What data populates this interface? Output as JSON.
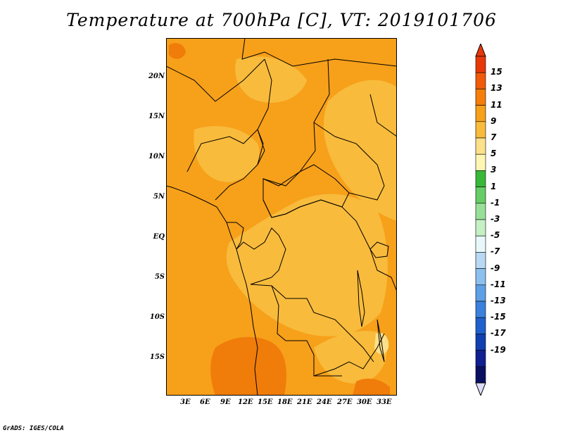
{
  "title": "Temperature at 700hPa [C], VT: 2019101706",
  "credit": "GrADS: IGES/COLA",
  "lat_ticks": [
    "20N",
    "15N",
    "10N",
    "5N",
    "EQ",
    "5S",
    "10S",
    "15S"
  ],
  "lon_ticks": [
    "3E",
    "6E",
    "9E",
    "12E",
    "15E",
    "18E",
    "21E",
    "24E",
    "27E",
    "30E",
    "33E"
  ],
  "colorbar": {
    "labels": [
      "15",
      "13",
      "11",
      "9",
      "7",
      "5",
      "3",
      "1",
      "-1",
      "-3",
      "-5",
      "-7",
      "-9",
      "-11",
      "-13",
      "-15",
      "-17",
      "-19"
    ],
    "colors": [
      "#e8380a",
      "#f05a0a",
      "#f57e0a",
      "#f7a01a",
      "#f8bb3c",
      "#fde08a",
      "#fff6b4",
      "#38b838",
      "#66cc66",
      "#98e098",
      "#c4f0c4",
      "#e8f8f8",
      "#b8d8f4",
      "#8cc0ee",
      "#5ea0e6",
      "#3a80dc",
      "#2060cc",
      "#1040b0",
      "#102090",
      "#0a1060"
    ],
    "over_color": "#e8380a",
    "under_color": "#dcdcf8"
  }
}
